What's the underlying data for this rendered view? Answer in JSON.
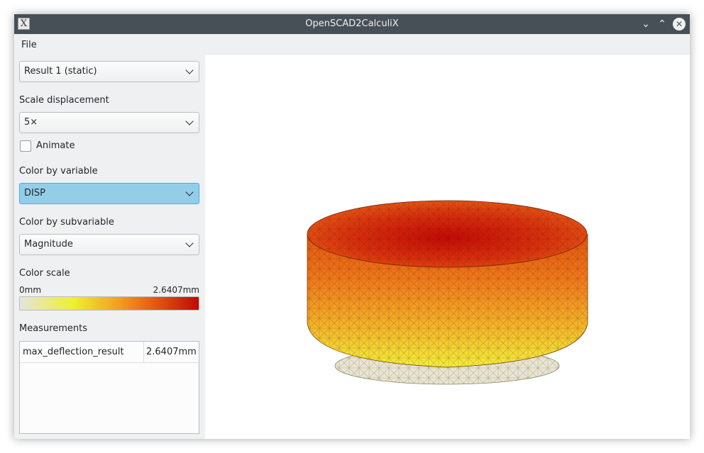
{
  "window": {
    "title": "OpenSCAD2CalculiX",
    "app_icon": "x11-icon",
    "controls": [
      "minimize-icon",
      "maximize-icon",
      "close-icon"
    ]
  },
  "menu": {
    "file": "File"
  },
  "sidebar": {
    "result_select": {
      "value": "Result 1 (static)"
    },
    "scale_displacement": {
      "label": "Scale displacement",
      "value": "5×"
    },
    "animate": {
      "label": "Animate",
      "checked": false
    },
    "color_by_variable": {
      "label": "Color by variable",
      "value": "DISP"
    },
    "color_by_subvariable": {
      "label": "Color by subvariable",
      "value": "Magnitude"
    },
    "color_scale": {
      "label": "Color scale",
      "min": "0mm",
      "max": "2.6407mm"
    },
    "measurements": {
      "label": "Measurements",
      "rows": [
        {
          "name": "max_deflection_result",
          "value": "2.6407mm"
        }
      ]
    }
  },
  "colors": {
    "titlebar": "#475057",
    "selection": "#93cee9",
    "scale_low": "#e4e4e2",
    "scale_mid": "#eef02c",
    "scale_high": "#c10808"
  }
}
